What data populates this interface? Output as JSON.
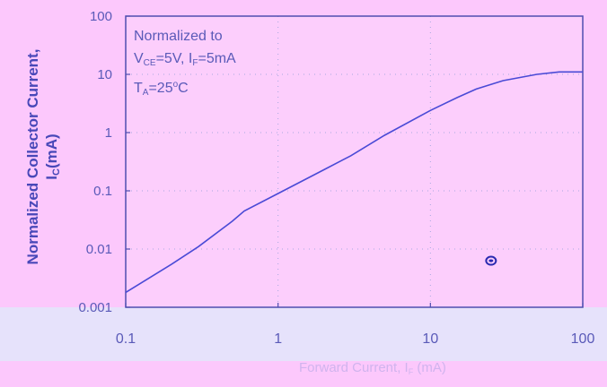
{
  "chart_data": {
    "type": "line",
    "xscale": "log",
    "yscale": "log",
    "xlim": [
      0.1,
      100
    ],
    "ylim": [
      0.001,
      100
    ],
    "x_ticks": [
      "0.1",
      "1",
      "10",
      "100"
    ],
    "y_ticks": [
      "0.001",
      "0.01",
      "0.1",
      "1",
      "10",
      "100"
    ],
    "ylabel_line1": "Normalized Collector Current,",
    "ylabel_line2_main": "I",
    "ylabel_line2_sub": "C",
    "ylabel_line2_rest": "(mA)",
    "xlabel_main": "Forward Current, I",
    "xlabel_sub": "F",
    "xlabel_rest": " (mA)",
    "annotation": {
      "line1": "Normalized to",
      "v_main": "V",
      "v_sub": "CE",
      "v_rest": "=5V, I",
      "i_sub": "F",
      "i_rest": "=5mA",
      "t_main": "T",
      "t_sub": "A",
      "t_rest": "=25",
      "t_sup": "o",
      "t_unit": "C"
    },
    "grid": true,
    "series": [
      {
        "x": [
          0.1,
          0.2,
          0.3,
          0.5,
          0.6,
          1,
          2,
          3,
          5,
          10,
          15,
          20,
          30,
          50,
          70,
          100
        ],
        "y": [
          0.0018,
          0.0055,
          0.011,
          0.03,
          0.045,
          0.09,
          0.23,
          0.4,
          0.9,
          2.4,
          4,
          5.6,
          7.8,
          10,
          11,
          11
        ]
      }
    ],
    "marker": {
      "x": 25,
      "y": 0.0063
    }
  },
  "colors": {
    "background": "#fcc8fc",
    "plot_background": "#fccefc",
    "line": "#4a4ad6",
    "axis": "#4e4eb0",
    "tick_text": "#5a5ab8",
    "xaxis_band": "#e6e2fb",
    "grid": "#a8a8e0"
  }
}
